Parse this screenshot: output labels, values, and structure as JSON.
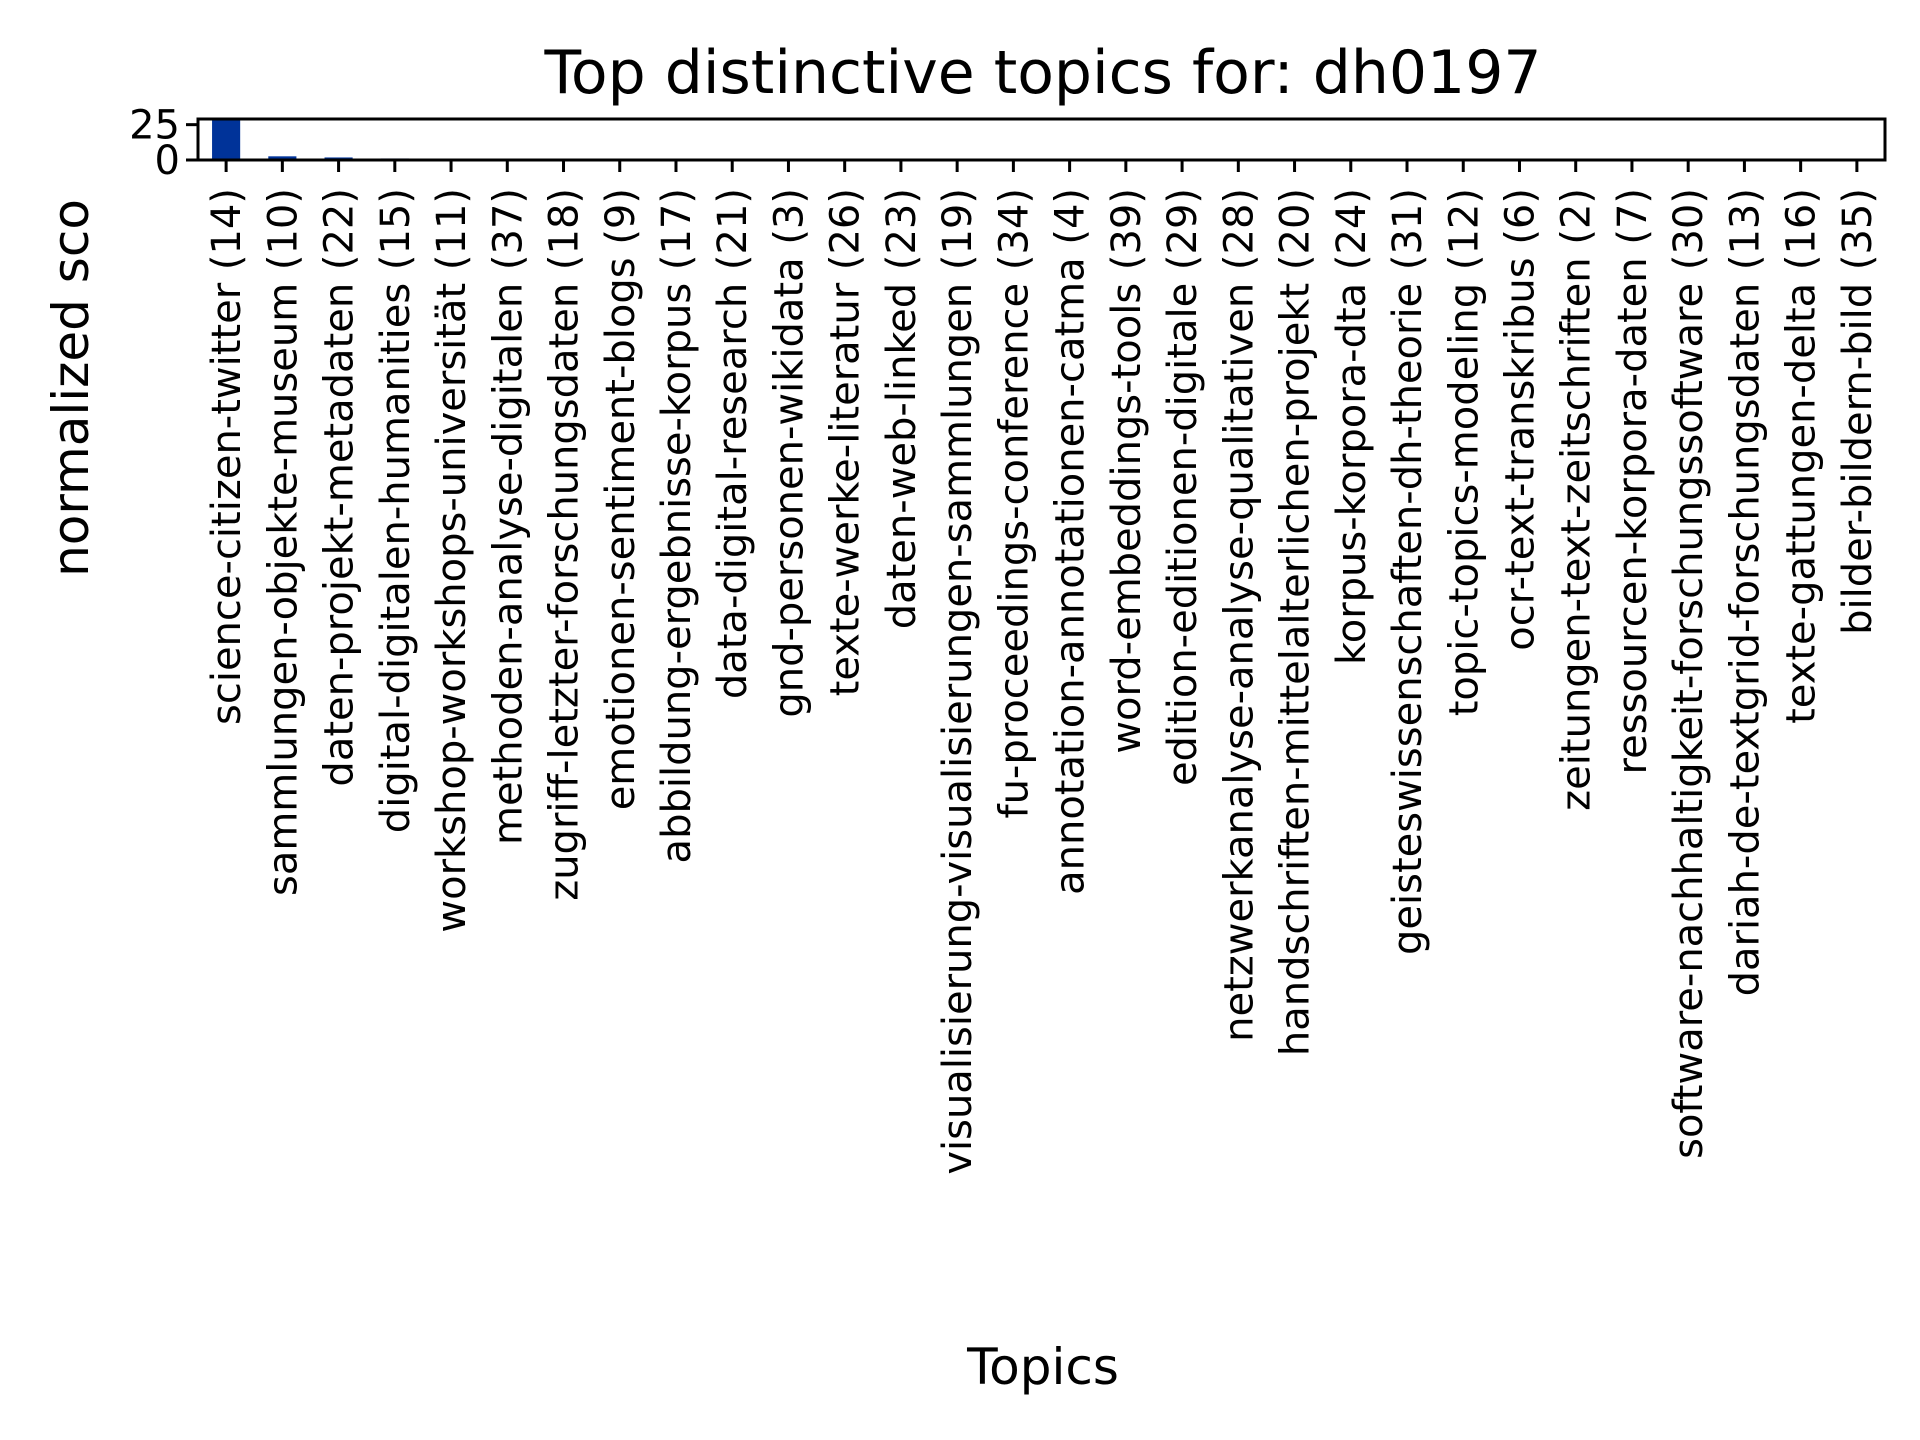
{
  "chart_data": {
    "type": "bar",
    "title": "Top distinctive topics for: dh0197",
    "xlabel": "Topics",
    "ylabel": "normalized sco",
    "ylim": [
      0,
      29
    ],
    "yticks": [
      "0",
      "25"
    ],
    "ytick_values": [
      0,
      25
    ],
    "grid": false,
    "legend": "none",
    "bar_color": "#003399",
    "categories": [
      "science-citizen-twitter (14)",
      "sammlungen-objekte-museum (10)",
      "daten-projekt-metadaten (22)",
      "digital-digitalen-humanities (15)",
      "workshop-workshops-universität (11)",
      "methoden-analyse-digitalen (37)",
      "zugriff-letzter-forschungsdaten (18)",
      "emotionen-sentiment-blogs (9)",
      "abbildung-ergebnisse-korpus (17)",
      "data-digital-research (21)",
      "gnd-personen-wikidata (3)",
      "texte-werke-literatur (26)",
      "daten-web-linked (23)",
      "visualisierung-visualisierungen-sammlungen (19)",
      "fu-proceedings-conference (34)",
      "annotation-annotationen-catma (4)",
      "word-embeddings-tools (39)",
      "edition-editionen-digitale (29)",
      "netzwerkanalyse-analyse-qualitativen (28)",
      "handschriften-mittelalterlichen-projekt (20)",
      "korpus-korpora-dta (24)",
      "geisteswissenschaften-dh-theorie (31)",
      "topic-topics-modeling (12)",
      "ocr-text-transkribus (6)",
      "zeitungen-text-zeitschriften (2)",
      "ressourcen-korpora-daten (7)",
      "software-nachhaltigkeit-forschungssoftware (30)",
      "dariah-de-textgrid-forschungsdaten (13)",
      "texte-gattungen-delta (16)",
      "bilder-bildern-bild (35)"
    ],
    "values": [
      28.5,
      2.6,
      1.8,
      1.1,
      0.7,
      0.35,
      0.3,
      0.25,
      0.22,
      0.2,
      0.18,
      0.16,
      0.15,
      0.14,
      0.13,
      0.12,
      0.11,
      0.1,
      0.09,
      0.09,
      0.08,
      0.08,
      0.07,
      0.07,
      0.06,
      0.06,
      0.05,
      0.05,
      0.05,
      0.04
    ]
  }
}
